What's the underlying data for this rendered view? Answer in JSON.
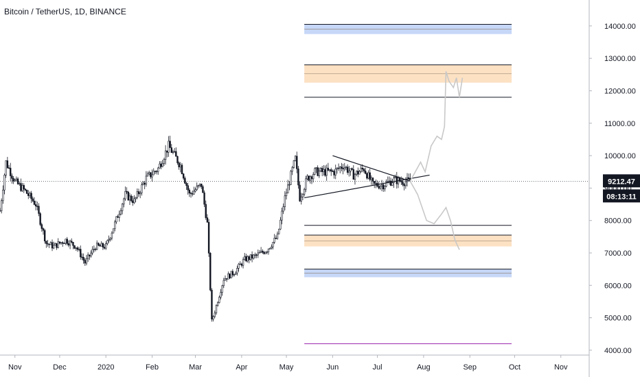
{
  "chart_data": {
    "type": "candlestick",
    "title": "Bitcoin / TetherUS, 1D, BINANCE",
    "y_axis": {
      "ticks": [
        4000,
        5000,
        6000,
        7000,
        8000,
        9000,
        10000,
        11000,
        12000,
        13000,
        14000
      ],
      "tick_labels": [
        "4000.00",
        "5000.00",
        "6000.00",
        "7000.00",
        "8000.00",
        "9000.00",
        "10000.00",
        "11000.00",
        "12000.00",
        "13000.00",
        "14000.00"
      ],
      "range": [
        3850,
        14800
      ]
    },
    "x_axis": {
      "labels": [
        "Nov",
        "Dec",
        "2020",
        "Feb",
        "Mar",
        "Apr",
        "May",
        "Jun",
        "Jul",
        "Aug",
        "Sep",
        "Oct",
        "Nov"
      ],
      "label_dates": [
        "2019-11-01",
        "2019-12-01",
        "2020-01-01",
        "2020-02-01",
        "2020-03-01",
        "2020-04-01",
        "2020-05-01",
        "2020-06-01",
        "2020-07-01",
        "2020-08-01",
        "2020-09-01",
        "2020-10-01",
        "2020-11-01"
      ],
      "range": [
        "2019-10-22",
        "2020-11-20"
      ]
    },
    "current_price": 9212.47,
    "price_label": "9212.47",
    "countdown_label": "08:13:11",
    "price_path": [
      [
        "2019-10-22",
        8300
      ],
      [
        "2019-10-26",
        9800
      ],
      [
        "2019-11-01",
        9200
      ],
      [
        "2019-11-08",
        8900
      ],
      [
        "2019-11-15",
        8500
      ],
      [
        "2019-11-22",
        7300
      ],
      [
        "2019-11-27",
        7200
      ],
      [
        "2019-12-05",
        7400
      ],
      [
        "2019-12-12",
        7200
      ],
      [
        "2019-12-18",
        6700
      ],
      [
        "2019-12-25",
        7200
      ],
      [
        "2020-01-01",
        7200
      ],
      [
        "2020-01-07",
        7900
      ],
      [
        "2020-01-14",
        8800
      ],
      [
        "2020-01-20",
        8600
      ],
      [
        "2020-01-28",
        9300
      ],
      [
        "2020-02-05",
        9600
      ],
      [
        "2020-02-12",
        10300
      ],
      [
        "2020-02-20",
        9700
      ],
      [
        "2020-02-26",
        8800
      ],
      [
        "2020-03-05",
        9100
      ],
      [
        "2020-03-09",
        7900
      ],
      [
        "2020-03-12",
        4900
      ],
      [
        "2020-03-14",
        5200
      ],
      [
        "2020-03-20",
        6200
      ],
      [
        "2020-03-27",
        6400
      ],
      [
        "2020-04-03",
        6800
      ],
      [
        "2020-04-10",
        6900
      ],
      [
        "2020-04-18",
        7100
      ],
      [
        "2020-04-25",
        7500
      ],
      [
        "2020-04-30",
        8700
      ],
      [
        "2020-05-07",
        9900
      ],
      [
        "2020-05-10",
        8700
      ],
      [
        "2020-05-15",
        9300
      ],
      [
        "2020-05-20",
        9500
      ],
      [
        "2020-05-28",
        9500
      ],
      [
        "2020-06-02",
        9500
      ],
      [
        "2020-06-08",
        9700
      ],
      [
        "2020-06-15",
        9400
      ],
      [
        "2020-06-22",
        9600
      ],
      [
        "2020-06-28",
        9100
      ],
      [
        "2020-07-05",
        9100
      ],
      [
        "2020-07-12",
        9250
      ],
      [
        "2020-07-19",
        9200
      ],
      [
        "2020-07-23",
        9212
      ]
    ],
    "projection_bullish": [
      [
        "2020-07-23",
        9212
      ],
      [
        "2020-07-30",
        9800
      ],
      [
        "2020-08-02",
        9500
      ],
      [
        "2020-08-06",
        10300
      ],
      [
        "2020-08-10",
        10600
      ],
      [
        "2020-08-13",
        10500
      ],
      [
        "2020-08-15",
        10900
      ],
      [
        "2020-08-16",
        12600
      ],
      [
        "2020-08-18",
        12300
      ],
      [
        "2020-08-21",
        12100
      ],
      [
        "2020-08-23",
        12400
      ],
      [
        "2020-08-25",
        11800
      ],
      [
        "2020-08-27",
        12400
      ]
    ],
    "projection_bearish": [
      [
        "2020-07-23",
        9212
      ],
      [
        "2020-07-28",
        8800
      ],
      [
        "2020-08-03",
        8000
      ],
      [
        "2020-08-08",
        7900
      ],
      [
        "2020-08-13",
        8200
      ],
      [
        "2020-08-16",
        8400
      ],
      [
        "2020-08-19",
        8000
      ],
      [
        "2020-08-22",
        7400
      ],
      [
        "2020-08-25",
        7100
      ]
    ],
    "triangle": {
      "upper": [
        [
          "2020-06-01",
          10000
        ],
        [
          "2020-07-23",
          9212
        ]
      ],
      "lower": [
        [
          "2020-05-13",
          8700
        ],
        [
          "2020-08-05",
          9400
        ]
      ]
    },
    "horizontal_lines": [
      {
        "value": 11800,
        "color": "#131722"
      },
      {
        "value": 7850,
        "color": "#131722"
      },
      {
        "value": 4200,
        "color": "#9c27b0"
      }
    ],
    "zones": [
      {
        "top": 14050,
        "bottom": 13750,
        "color": "#bcd0f6",
        "edge": "#131722"
      },
      {
        "top": 12800,
        "bottom": 12250,
        "color": "#fbdcb8",
        "edge": "#131722"
      },
      {
        "top": 7550,
        "bottom": 7200,
        "color": "#fbdcb8",
        "edge": "#131722"
      },
      {
        "top": 6500,
        "bottom": 6250,
        "color": "#bcd0f6",
        "edge": "#131722"
      }
    ],
    "zone_start": "2020-05-13",
    "zone_end": "2020-09-29",
    "colors": {
      "up": "#131722",
      "down": "#131722",
      "projection": "#c8c8c8",
      "axis_text": "#131722",
      "grid": "#e9ecef"
    }
  }
}
